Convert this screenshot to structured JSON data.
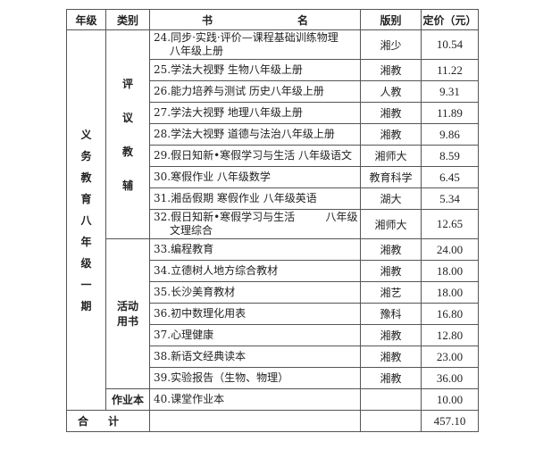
{
  "header": {
    "grade": "年级",
    "category": "类别",
    "title_a": "书",
    "title_b": "名",
    "publisher": "版别",
    "price": "定价（元）"
  },
  "grade_label": [
    "义",
    "务",
    "教",
    "育",
    "八",
    "年",
    "级",
    "一",
    "期"
  ],
  "categories": {
    "review": [
      "评",
      "议",
      "教",
      "辅"
    ],
    "activity": [
      "活动",
      "用书"
    ],
    "homework": "作业本"
  },
  "rows": [
    {
      "name": "24.同步·实践·评价—课程基础训练物理",
      "name2": "八年级上册",
      "publisher": "湘少",
      "price": "10.54"
    },
    {
      "name": "25.学法大视野  生物八年级上册",
      "publisher": "湘教",
      "price": "11.22"
    },
    {
      "name": "26.能力培养与测试    历史八年级上册",
      "publisher": "人教",
      "price": "9.31"
    },
    {
      "name": "27.学法大视野    地理八年级上册",
      "publisher": "湘教",
      "price": "11.89"
    },
    {
      "name": "28.学法大视野    道德与法治八年级上册",
      "publisher": "湘教",
      "price": "9.86"
    },
    {
      "name": "29.假日知新•寒假学习与生活  八年级语文",
      "publisher": "湘师大",
      "price": "8.59"
    },
    {
      "name": "30.寒假作业  八年级数学",
      "publisher": "教育科学",
      "price": "6.45"
    },
    {
      "name": "31.湘岳假期  寒假作业  八年级英语",
      "publisher": "湖大",
      "price": "5.34"
    },
    {
      "name": "32.假日知新•寒假学习与生活         八年级",
      "name2": "文理综合",
      "publisher": "湘师大",
      "price": "12.65"
    },
    {
      "name": "33.编程教育",
      "publisher": "湘教",
      "price": "24.00"
    },
    {
      "name": "34.立德树人地方综合教材",
      "publisher": "湘教",
      "price": "18.00"
    },
    {
      "name": "35.长沙美育教材",
      "publisher": "湘艺",
      "price": "18.00"
    },
    {
      "name": "36.初中数理化用表",
      "publisher": "豫科",
      "price": "16.80"
    },
    {
      "name": "37.心理健康",
      "publisher": "湘教",
      "price": "12.80"
    },
    {
      "name": "38.新语文经典读本",
      "publisher": "湘教",
      "price": "23.00"
    },
    {
      "name": "39.实验报告（生物、物理）",
      "publisher": "湘教",
      "price": "36.00"
    },
    {
      "name": "40.课堂作业本",
      "publisher": "",
      "price": "10.00"
    }
  ],
  "total": {
    "label": "合计",
    "price": "457.10"
  }
}
